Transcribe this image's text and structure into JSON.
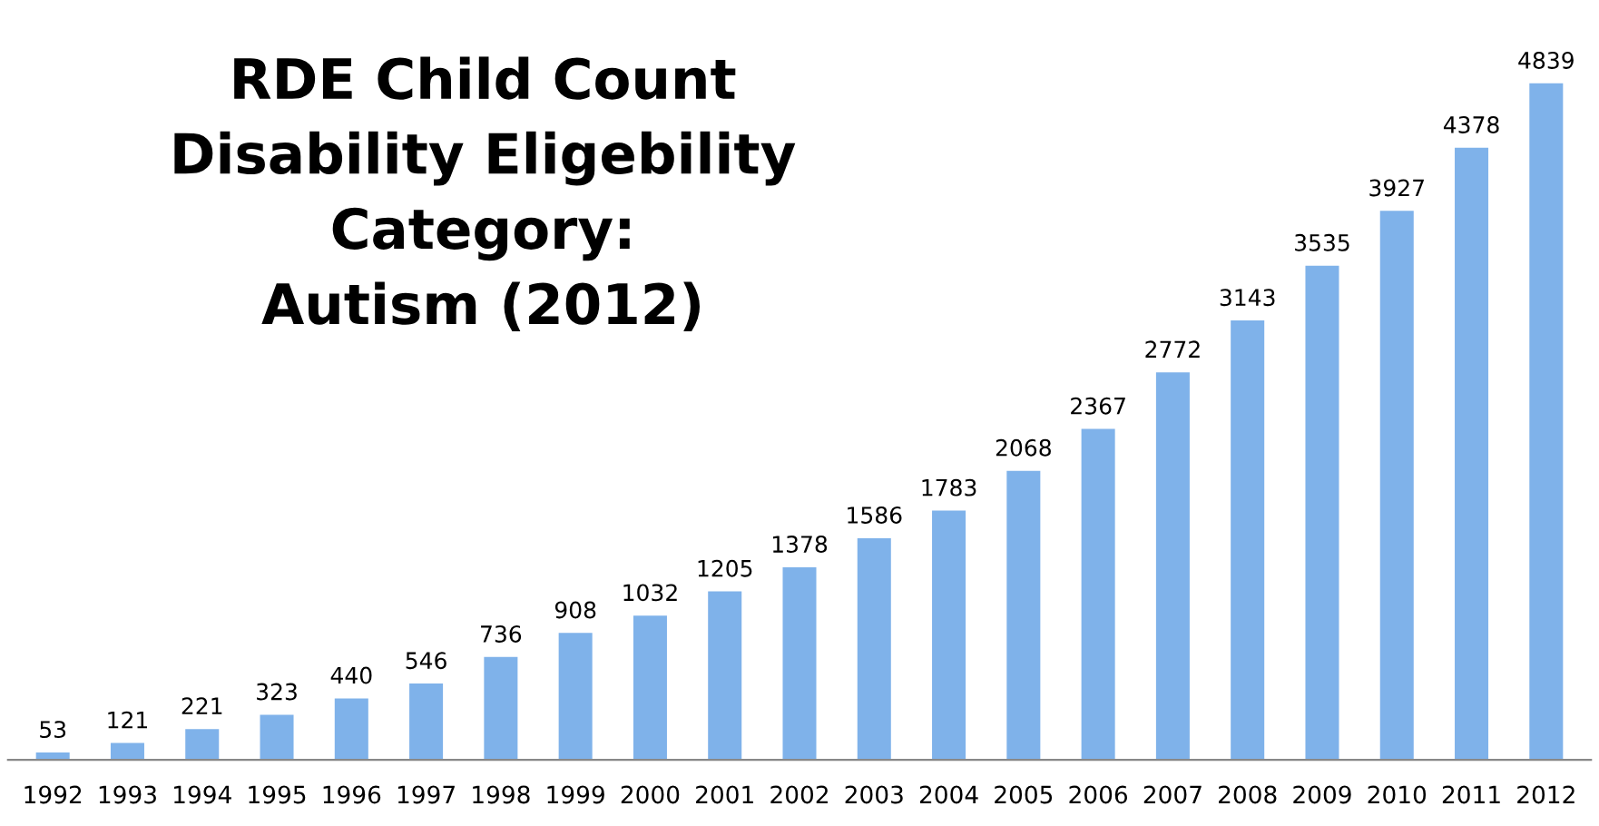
{
  "chart_data": {
    "type": "bar",
    "title": "RDE Child Count\nDisability Eligebility\nCategory:\nAutism (2012)",
    "categories": [
      "1992",
      "1993",
      "1994",
      "1995",
      "1996",
      "1997",
      "1998",
      "1999",
      "2000",
      "2001",
      "2002",
      "2003",
      "2004",
      "2005",
      "2006",
      "2007",
      "2008",
      "2009",
      "2010",
      "2011",
      "2012"
    ],
    "values": [
      53,
      121,
      221,
      323,
      440,
      546,
      736,
      908,
      1032,
      1205,
      1378,
      1586,
      1783,
      2068,
      2367,
      2772,
      3143,
      3535,
      3927,
      4378,
      4839
    ],
    "color": "#7fb2ea",
    "data_labels": true,
    "grid": false,
    "legend": false
  }
}
